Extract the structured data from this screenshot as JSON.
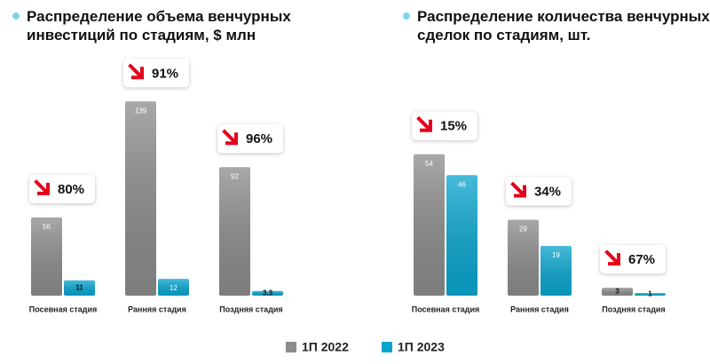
{
  "chart_data": [
    {
      "type": "bar",
      "title": "Распределение объема венчурных инвестиций по стадиям, $ млн",
      "categories": [
        "Посевная стадия",
        "Ранняя стадия",
        "Поздняя стадия"
      ],
      "series": [
        {
          "name": "1П 2022",
          "color": "#8c8c8c",
          "values": [
            56,
            139,
            92
          ]
        },
        {
          "name": "1П 2023",
          "color": "#0aa5cf",
          "values": [
            11,
            12,
            3.3
          ]
        }
      ],
      "annotations": [
        "80%",
        "91%",
        "96%"
      ],
      "ylim": [
        0,
        150
      ]
    },
    {
      "type": "bar",
      "title": "Распределение количества венчурных сделок по стадиям, шт.",
      "categories": [
        "Посевная стадия",
        "Ранняя стадия",
        "Поздняя стадия"
      ],
      "series": [
        {
          "color": "#8c8c8c",
          "values": [
            54,
            29,
            3
          ]
        },
        {
          "color": "#0aa5cf",
          "values": [
            46,
            19,
            1
          ]
        }
      ],
      "annotations": [
        "15%",
        "34%",
        "67%"
      ],
      "ylim": [
        0,
        80
      ]
    }
  ]
}
